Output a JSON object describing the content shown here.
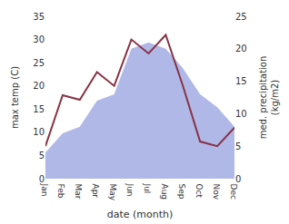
{
  "chart_data": {
    "type": "line",
    "categories": [
      "Jan",
      "Feb",
      "Mar",
      "Apr",
      "May",
      "Jun",
      "Jul",
      "Aug",
      "Sep",
      "Oct",
      "Nov",
      "Dec"
    ],
    "series": [
      {
        "type": "area",
        "color": "#b0b8e8",
        "axis": "y2",
        "values": [
          4,
          7,
          8,
          12,
          13,
          20,
          21,
          20,
          17,
          13,
          11,
          8
        ]
      },
      {
        "type": "line",
        "color": "#883344",
        "values": [
          7,
          18,
          17,
          23,
          20,
          30,
          27,
          31,
          20,
          8,
          7,
          11
        ]
      }
    ],
    "xlabel": "date (month)",
    "ylabel": "max temp (C)",
    "y2label": "med. precipitation\n(kg/m2)",
    "ylim": [
      0,
      35
    ],
    "yticks": [
      0,
      5,
      10,
      15,
      20,
      25,
      30,
      35
    ],
    "y2lim": [
      0,
      25
    ],
    "y2ticks": [
      0,
      5,
      10,
      15,
      20,
      25
    ],
    "grid": false
  }
}
